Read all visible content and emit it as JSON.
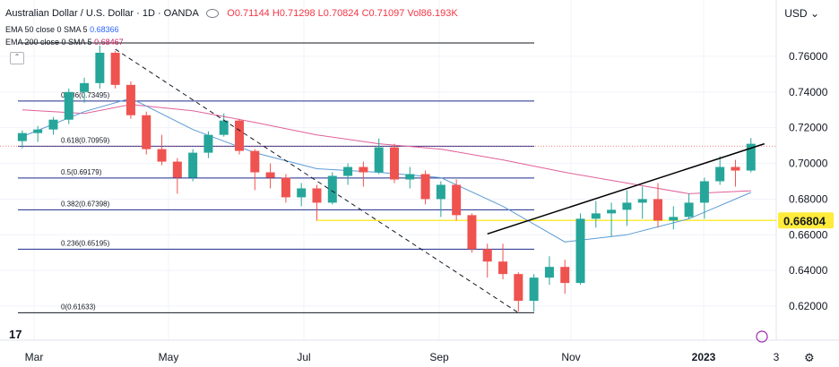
{
  "header": {
    "symbol": "Australian Dollar / U.S. Dollar · 1D · OANDA",
    "open": "O0.71144",
    "high": "H0.71298",
    "low": "L0.70824",
    "close": "C0.71097",
    "volume": "Vol86.193K",
    "currency": "USD"
  },
  "indicators": [
    {
      "label": "EMA 50 close 0 SMA 5",
      "value": "0.68366",
      "color": "#2962ff"
    },
    {
      "label": "EMA 200 close 0 SMA 5",
      "value": "0.68467",
      "color": "#c2185b"
    }
  ],
  "colors": {
    "up": "#26a69a",
    "down": "#ef5350",
    "ema50": "#5b9bd5",
    "ema200": "#e0609a",
    "fib_line": "#1c2a8c",
    "support": "#ffeb3b",
    "trendline": "#000000",
    "grid": "#f0f3fa"
  },
  "chart_data": {
    "type": "candlestick",
    "title": "Australian Dollar / U.S. Dollar · 1D · OANDA",
    "x_ticks": [
      "Mar",
      "May",
      "Jul",
      "Sep",
      "Nov",
      "2023",
      "3"
    ],
    "y_ticks": [
      "0.76000",
      "0.74000",
      "0.72000",
      "0.70000",
      "0.68000",
      "0.66000",
      "0.64000",
      "0.62000"
    ],
    "ylim": [
      0.6135,
      0.7705
    ],
    "highlighted_price": "0.66804",
    "fibonacci": [
      {
        "label": "0(0.61633)",
        "price": 0.61633
      },
      {
        "label": "0.236(0.65195)",
        "price": 0.65195
      },
      {
        "label": "0.382(0.67398)",
        "price": 0.67398
      },
      {
        "label": "0.5(0.69179)",
        "price": 0.69179
      },
      {
        "label": "0.618(0.70959)",
        "price": 0.70959
      },
      {
        "label": "0.786(0.73495)",
        "price": 0.73495
      },
      {
        "label": "",
        "price": 0.7675
      }
    ],
    "candles": [
      {
        "date": "2022-02-28",
        "o": 0.7125,
        "h": 0.7185,
        "l": 0.7085,
        "c": 0.717
      },
      {
        "date": "2022-03-07",
        "o": 0.717,
        "h": 0.721,
        "l": 0.712,
        "c": 0.719
      },
      {
        "date": "2022-03-14",
        "o": 0.719,
        "h": 0.726,
        "l": 0.716,
        "c": 0.7245
      },
      {
        "date": "2022-03-21",
        "o": 0.7245,
        "h": 0.742,
        "l": 0.722,
        "c": 0.74
      },
      {
        "date": "2022-03-28",
        "o": 0.74,
        "h": 0.748,
        "l": 0.734,
        "c": 0.745
      },
      {
        "date": "2022-04-04",
        "o": 0.745,
        "h": 0.766,
        "l": 0.742,
        "c": 0.762
      },
      {
        "date": "2022-04-11",
        "o": 0.762,
        "h": 0.763,
        "l": 0.742,
        "c": 0.744
      },
      {
        "date": "2022-04-18",
        "o": 0.744,
        "h": 0.746,
        "l": 0.725,
        "c": 0.727
      },
      {
        "date": "2022-04-25",
        "o": 0.727,
        "h": 0.729,
        "l": 0.705,
        "c": 0.708
      },
      {
        "date": "2022-05-02",
        "o": 0.708,
        "h": 0.716,
        "l": 0.699,
        "c": 0.701
      },
      {
        "date": "2022-05-09",
        "o": 0.701,
        "h": 0.703,
        "l": 0.683,
        "c": 0.692
      },
      {
        "date": "2022-05-16",
        "o": 0.692,
        "h": 0.708,
        "l": 0.69,
        "c": 0.706
      },
      {
        "date": "2022-05-23",
        "o": 0.706,
        "h": 0.718,
        "l": 0.703,
        "c": 0.716
      },
      {
        "date": "2022-05-30",
        "o": 0.716,
        "h": 0.728,
        "l": 0.715,
        "c": 0.724
      },
      {
        "date": "2022-06-06",
        "o": 0.724,
        "h": 0.725,
        "l": 0.705,
        "c": 0.707
      },
      {
        "date": "2022-06-13",
        "o": 0.707,
        "h": 0.708,
        "l": 0.685,
        "c": 0.695
      },
      {
        "date": "2022-06-20",
        "o": 0.695,
        "h": 0.7,
        "l": 0.686,
        "c": 0.692
      },
      {
        "date": "2022-06-27",
        "o": 0.692,
        "h": 0.694,
        "l": 0.678,
        "c": 0.681
      },
      {
        "date": "2022-07-04",
        "o": 0.681,
        "h": 0.689,
        "l": 0.676,
        "c": 0.686
      },
      {
        "date": "2022-07-11",
        "o": 0.686,
        "h": 0.688,
        "l": 0.668,
        "c": 0.678
      },
      {
        "date": "2022-07-18",
        "o": 0.678,
        "h": 0.695,
        "l": 0.677,
        "c": 0.693
      },
      {
        "date": "2022-07-25",
        "o": 0.693,
        "h": 0.7,
        "l": 0.688,
        "c": 0.698
      },
      {
        "date": "2022-08-01",
        "o": 0.698,
        "h": 0.701,
        "l": 0.687,
        "c": 0.695
      },
      {
        "date": "2022-08-08",
        "o": 0.695,
        "h": 0.714,
        "l": 0.694,
        "c": 0.709
      },
      {
        "date": "2022-08-15",
        "o": 0.709,
        "h": 0.711,
        "l": 0.689,
        "c": 0.691
      },
      {
        "date": "2022-08-22",
        "o": 0.691,
        "h": 0.698,
        "l": 0.686,
        "c": 0.694
      },
      {
        "date": "2022-08-29",
        "o": 0.694,
        "h": 0.696,
        "l": 0.677,
        "c": 0.68
      },
      {
        "date": "2022-09-05",
        "o": 0.68,
        "h": 0.69,
        "l": 0.67,
        "c": 0.688
      },
      {
        "date": "2022-09-12",
        "o": 0.688,
        "h": 0.691,
        "l": 0.668,
        "c": 0.671
      },
      {
        "date": "2022-09-19",
        "o": 0.671,
        "h": 0.672,
        "l": 0.65,
        "c": 0.652
      },
      {
        "date": "2022-09-26",
        "o": 0.652,
        "h": 0.655,
        "l": 0.636,
        "c": 0.645
      },
      {
        "date": "2022-10-03",
        "o": 0.645,
        "h": 0.655,
        "l": 0.635,
        "c": 0.638
      },
      {
        "date": "2022-10-10",
        "o": 0.638,
        "h": 0.639,
        "l": 0.617,
        "c": 0.623
      },
      {
        "date": "2022-10-17",
        "o": 0.623,
        "h": 0.638,
        "l": 0.617,
        "c": 0.636
      },
      {
        "date": "2022-10-24",
        "o": 0.636,
        "h": 0.648,
        "l": 0.632,
        "c": 0.642
      },
      {
        "date": "2022-10-31",
        "o": 0.642,
        "h": 0.646,
        "l": 0.627,
        "c": 0.633
      },
      {
        "date": "2022-11-07",
        "o": 0.633,
        "h": 0.672,
        "l": 0.632,
        "c": 0.669
      },
      {
        "date": "2022-11-14",
        "o": 0.669,
        "h": 0.679,
        "l": 0.664,
        "c": 0.672
      },
      {
        "date": "2022-11-21",
        "o": 0.672,
        "h": 0.678,
        "l": 0.659,
        "c": 0.674
      },
      {
        "date": "2022-11-28",
        "o": 0.674,
        "h": 0.685,
        "l": 0.665,
        "c": 0.678
      },
      {
        "date": "2022-12-05",
        "o": 0.678,
        "h": 0.687,
        "l": 0.669,
        "c": 0.68
      },
      {
        "date": "2022-12-12",
        "o": 0.68,
        "h": 0.689,
        "l": 0.664,
        "c": 0.668
      },
      {
        "date": "2022-12-19",
        "o": 0.668,
        "h": 0.676,
        "l": 0.663,
        "c": 0.67
      },
      {
        "date": "2022-12-26",
        "o": 0.67,
        "h": 0.683,
        "l": 0.669,
        "c": 0.678
      },
      {
        "date": "2023-01-02",
        "o": 0.678,
        "h": 0.692,
        "l": 0.669,
        "c": 0.69
      },
      {
        "date": "2023-01-09",
        "o": 0.69,
        "h": 0.704,
        "l": 0.688,
        "c": 0.698
      },
      {
        "date": "2023-01-16",
        "o": 0.698,
        "h": 0.702,
        "l": 0.687,
        "c": 0.696
      },
      {
        "date": "2023-01-23",
        "o": 0.696,
        "h": 0.7142,
        "l": 0.695,
        "c": 0.711
      }
    ],
    "ema50": [
      {
        "date": "2022-02-28",
        "v": 0.715
      },
      {
        "date": "2022-03-28",
        "v": 0.729
      },
      {
        "date": "2022-04-18",
        "v": 0.7365
      },
      {
        "date": "2022-05-16",
        "v": 0.719
      },
      {
        "date": "2022-06-13",
        "v": 0.706
      },
      {
        "date": "2022-07-11",
        "v": 0.697
      },
      {
        "date": "2022-08-08",
        "v": 0.695
      },
      {
        "date": "2022-09-05",
        "v": 0.692
      },
      {
        "date": "2022-10-03",
        "v": 0.676
      },
      {
        "date": "2022-10-31",
        "v": 0.656
      },
      {
        "date": "2022-11-28",
        "v": 0.66
      },
      {
        "date": "2022-12-26",
        "v": 0.669
      },
      {
        "date": "2023-01-23",
        "v": 0.6837
      }
    ],
    "ema200": [
      {
        "date": "2022-02-28",
        "v": 0.73
      },
      {
        "date": "2022-03-28",
        "v": 0.728
      },
      {
        "date": "2022-04-18",
        "v": 0.733
      },
      {
        "date": "2022-05-16",
        "v": 0.7295
      },
      {
        "date": "2022-06-13",
        "v": 0.723
      },
      {
        "date": "2022-07-11",
        "v": 0.716
      },
      {
        "date": "2022-08-08",
        "v": 0.711
      },
      {
        "date": "2022-09-05",
        "v": 0.708
      },
      {
        "date": "2022-10-03",
        "v": 0.702
      },
      {
        "date": "2022-10-31",
        "v": 0.695
      },
      {
        "date": "2022-11-28",
        "v": 0.689
      },
      {
        "date": "2022-12-26",
        "v": 0.683
      },
      {
        "date": "2023-01-23",
        "v": 0.6847
      }
    ],
    "trendline": [
      {
        "date": "2022-09-26",
        "v": 0.6605
      },
      {
        "date": "2023-01-23",
        "v": 0.711
      }
    ],
    "dashed_line": [
      {
        "date": "2022-04-11",
        "v": 0.764
      },
      {
        "date": "2022-10-10",
        "v": 0.6163
      }
    ],
    "support_line": {
      "price": 0.66804,
      "from": "2022-07-11"
    }
  }
}
